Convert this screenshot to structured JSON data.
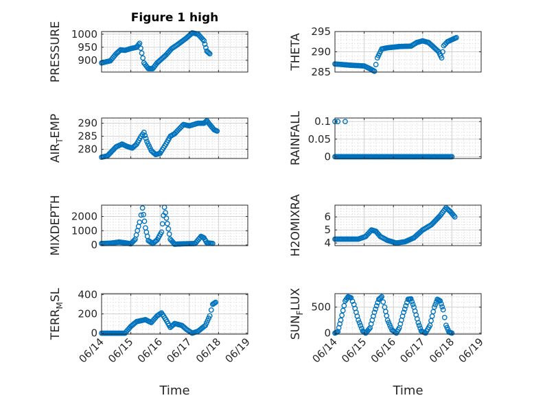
{
  "chart_data": [
    {
      "type": "scatter",
      "id": "p1",
      "title": "Figure 1 high",
      "ylabel": "PRESSURE",
      "ylabel_sub": "",
      "ylabel_after": "",
      "xlabel": "",
      "xlim": [
        0,
        5
      ],
      "xticks": [
        0,
        1,
        2,
        3,
        4,
        5
      ],
      "xtick_labels": [
        "06/14",
        "06/15",
        "06/16",
        "06/17",
        "06/18",
        "06/19"
      ],
      "show_xticklabels": false,
      "ylim": [
        855,
        1010
      ],
      "yticks": [
        900,
        950,
        1000
      ],
      "ytick_labels": [
        "900",
        "950",
        "1000"
      ],
      "grid": true,
      "marker": "circle",
      "color": "#0072BD",
      "anchors": [
        [
          0,
          890
        ],
        [
          0.3,
          898
        ],
        [
          0.5,
          925
        ],
        [
          0.65,
          940
        ],
        [
          0.8,
          938
        ],
        [
          1.0,
          945
        ],
        [
          1.2,
          950
        ],
        [
          1.3,
          965
        ],
        [
          1.45,
          890
        ],
        [
          1.6,
          868
        ],
        [
          1.75,
          868
        ],
        [
          1.9,
          890
        ],
        [
          2.2,
          920
        ],
        [
          2.4,
          945
        ],
        [
          2.6,
          960
        ],
        [
          2.9,
          985
        ],
        [
          3.1,
          1005
        ],
        [
          3.3,
          1000
        ],
        [
          3.5,
          975
        ],
        [
          3.6,
          935
        ],
        [
          3.7,
          925
        ]
      ]
    },
    {
      "type": "scatter",
      "id": "p2",
      "title": "",
      "ylabel": "THETA",
      "ylabel_sub": "",
      "ylabel_after": "",
      "xlabel": "",
      "xlim": [
        0,
        5
      ],
      "xticks": [
        0,
        1,
        2,
        3,
        4,
        5
      ],
      "xtick_labels": [
        "06/14",
        "06/15",
        "06/16",
        "06/17",
        "06/18",
        "06/19"
      ],
      "show_xticklabels": false,
      "ylim": [
        285,
        295
      ],
      "yticks": [
        285,
        290,
        295
      ],
      "ytick_labels": [
        "285",
        "290",
        "295"
      ],
      "grid": true,
      "marker": "circle",
      "color": "#0072BD",
      "anchors": [
        [
          0,
          287
        ],
        [
          0.5,
          286.7
        ],
        [
          1.0,
          286.5
        ],
        [
          1.2,
          285.8
        ],
        [
          1.35,
          285.2
        ],
        [
          1.45,
          288.5
        ],
        [
          1.6,
          290.7
        ],
        [
          1.8,
          291.0
        ],
        [
          2.2,
          291.3
        ],
        [
          2.6,
          291.4
        ],
        [
          2.8,
          292.3
        ],
        [
          3.0,
          292.7
        ],
        [
          3.2,
          292.3
        ],
        [
          3.4,
          291
        ],
        [
          3.55,
          290
        ],
        [
          3.65,
          288.5
        ],
        [
          3.72,
          291.5
        ],
        [
          3.85,
          292.5
        ],
        [
          4.0,
          293.0
        ],
        [
          4.15,
          293.5
        ]
      ]
    },
    {
      "type": "scatter",
      "id": "p3",
      "title": "",
      "ylabel": "AIR",
      "ylabel_sub": "T",
      "ylabel_after": "EMP",
      "xlabel": "",
      "xlim": [
        0,
        5
      ],
      "xticks": [
        0,
        1,
        2,
        3,
        4,
        5
      ],
      "xtick_labels": [
        "06/14",
        "06/15",
        "06/16",
        "06/17",
        "06/18",
        "06/19"
      ],
      "show_xticklabels": false,
      "ylim": [
        276.5,
        292
      ],
      "yticks": [
        280,
        285,
        290
      ],
      "ytick_labels": [
        "280",
        "285",
        "290"
      ],
      "grid": true,
      "marker": "circle",
      "color": "#0072BD",
      "anchors": [
        [
          0,
          277
        ],
        [
          0.2,
          277.5
        ],
        [
          0.5,
          281
        ],
        [
          0.7,
          282
        ],
        [
          0.9,
          281
        ],
        [
          1.05,
          280.5
        ],
        [
          1.2,
          282
        ],
        [
          1.35,
          285
        ],
        [
          1.45,
          286.5
        ],
        [
          1.55,
          283
        ],
        [
          1.7,
          279.5
        ],
        [
          1.85,
          278
        ],
        [
          2.0,
          278.5
        ],
        [
          2.2,
          282
        ],
        [
          2.35,
          285
        ],
        [
          2.5,
          286
        ],
        [
          2.8,
          289.5
        ],
        [
          3.0,
          289
        ],
        [
          3.3,
          290
        ],
        [
          3.5,
          290
        ],
        [
          3.6,
          291
        ],
        [
          3.7,
          289.5
        ],
        [
          3.85,
          287.5
        ],
        [
          3.95,
          287
        ]
      ]
    },
    {
      "type": "scatter",
      "id": "p4",
      "title": "",
      "ylabel": "RAINFALL",
      "ylabel_sub": "",
      "ylabel_after": "",
      "xlabel": "",
      "xlim": [
        0,
        5
      ],
      "xticks": [
        0,
        1,
        2,
        3,
        4,
        5
      ],
      "xtick_labels": [
        "06/14",
        "06/15",
        "06/16",
        "06/17",
        "06/18",
        "06/19"
      ],
      "show_xticklabels": false,
      "ylim": [
        -0.005,
        0.11
      ],
      "yticks": [
        0,
        0.05,
        0.1
      ],
      "ytick_labels": [
        "0",
        "0.05",
        "0.1"
      ],
      "grid": true,
      "marker": "circle",
      "color": "#0072BD",
      "anchors": [
        [
          0,
          0
        ],
        [
          4.0,
          0
        ]
      ],
      "extra_points": [
        [
          0.0,
          0.1
        ],
        [
          0.1,
          0.1
        ],
        [
          0.35,
          0.1
        ]
      ]
    },
    {
      "type": "scatter",
      "id": "p5",
      "title": "",
      "ylabel": "MIXDEPTH",
      "ylabel_sub": "",
      "ylabel_after": "",
      "xlabel": "",
      "xlim": [
        0,
        5
      ],
      "xticks": [
        0,
        1,
        2,
        3,
        4,
        5
      ],
      "xtick_labels": [
        "06/14",
        "06/15",
        "06/16",
        "06/17",
        "06/18",
        "06/19"
      ],
      "show_xticklabels": false,
      "ylim": [
        -50,
        2800
      ],
      "yticks": [
        0,
        1000,
        2000
      ],
      "ytick_labels": [
        "0",
        "1000",
        "2000"
      ],
      "grid": true,
      "marker": "circle",
      "color": "#0072BD",
      "anchors": [
        [
          0,
          100
        ],
        [
          0.3,
          120
        ],
        [
          0.6,
          200
        ],
        [
          0.8,
          150
        ],
        [
          1.0,
          80
        ],
        [
          1.15,
          400
        ],
        [
          1.3,
          1600
        ],
        [
          1.4,
          2600
        ],
        [
          1.5,
          1200
        ],
        [
          1.6,
          300
        ],
        [
          1.75,
          100
        ],
        [
          1.9,
          350
        ],
        [
          2.05,
          900
        ],
        [
          2.15,
          2650
        ],
        [
          2.25,
          1500
        ],
        [
          2.35,
          400
        ],
        [
          2.5,
          50
        ],
        [
          2.8,
          80
        ],
        [
          3.2,
          100
        ],
        [
          3.4,
          600
        ],
        [
          3.5,
          500
        ],
        [
          3.6,
          150
        ],
        [
          3.8,
          100
        ]
      ]
    },
    {
      "type": "scatter",
      "id": "p6",
      "title": "",
      "ylabel": "H2OMIXRA",
      "ylabel_sub": "",
      "ylabel_after": "",
      "xlabel": "",
      "xlim": [
        0,
        5
      ],
      "xticks": [
        0,
        1,
        2,
        3,
        4,
        5
      ],
      "xtick_labels": [
        "06/14",
        "06/15",
        "06/16",
        "06/17",
        "06/18",
        "06/19"
      ],
      "show_xticklabels": false,
      "ylim": [
        3.8,
        6.9
      ],
      "yticks": [
        4,
        5,
        6
      ],
      "ytick_labels": [
        "4",
        "5",
        "6"
      ],
      "grid": true,
      "marker": "circle",
      "color": "#0072BD",
      "anchors": [
        [
          0,
          4.3
        ],
        [
          0.3,
          4.3
        ],
        [
          0.8,
          4.3
        ],
        [
          1.05,
          4.5
        ],
        [
          1.25,
          5.0
        ],
        [
          1.4,
          4.9
        ],
        [
          1.55,
          4.5
        ],
        [
          1.8,
          4.2
        ],
        [
          2.1,
          4.0
        ],
        [
          2.4,
          4.1
        ],
        [
          2.7,
          4.4
        ],
        [
          3.0,
          5.0
        ],
        [
          3.3,
          5.4
        ],
        [
          3.6,
          6.1
        ],
        [
          3.8,
          6.7
        ],
        [
          3.95,
          6.4
        ],
        [
          4.1,
          6.0
        ]
      ]
    },
    {
      "type": "scatter",
      "id": "p7",
      "title": "",
      "ylabel": "TERR",
      "ylabel_sub": "M",
      "ylabel_after": "SL",
      "xlabel": "Time",
      "xlim": [
        0,
        5
      ],
      "xticks": [
        0,
        1,
        2,
        3,
        4,
        5
      ],
      "xtick_labels": [
        "06/14",
        "06/15",
        "06/16",
        "06/17",
        "06/18",
        "06/19"
      ],
      "show_xticklabels": true,
      "ylim": [
        -10,
        410
      ],
      "yticks": [
        0,
        200,
        400
      ],
      "ytick_labels": [
        "0",
        "200",
        "400"
      ],
      "grid": true,
      "marker": "circle",
      "color": "#0072BD",
      "anchors": [
        [
          0,
          0
        ],
        [
          0.8,
          0
        ],
        [
          1.0,
          70
        ],
        [
          1.2,
          120
        ],
        [
          1.5,
          140
        ],
        [
          1.7,
          110
        ],
        [
          1.9,
          180
        ],
        [
          2.05,
          210
        ],
        [
          2.2,
          140
        ],
        [
          2.35,
          60
        ],
        [
          2.5,
          100
        ],
        [
          2.75,
          80
        ],
        [
          2.9,
          40
        ],
        [
          3.1,
          0
        ],
        [
          3.3,
          20
        ],
        [
          3.55,
          80
        ],
        [
          3.7,
          180
        ],
        [
          3.8,
          300
        ],
        [
          3.9,
          320
        ]
      ]
    },
    {
      "type": "scatter",
      "id": "p8",
      "title": "",
      "ylabel": "SUN",
      "ylabel_sub": "F",
      "ylabel_after": "LUX",
      "xlabel": "Time",
      "xlim": [
        0,
        5
      ],
      "xticks": [
        0,
        1,
        2,
        3,
        4,
        5
      ],
      "xtick_labels": [
        "06/14",
        "06/15",
        "06/16",
        "06/17",
        "06/18",
        "06/19"
      ],
      "show_xticklabels": true,
      "ylim": [
        -20,
        760
      ],
      "yticks": [
        0,
        500
      ],
      "ytick_labels": [
        "0",
        "500"
      ],
      "grid": true,
      "marker": "circle",
      "color": "#0072BD",
      "anchors": [
        [
          0,
          0
        ],
        [
          0.1,
          30
        ],
        [
          0.2,
          250
        ],
        [
          0.35,
          620
        ],
        [
          0.45,
          700
        ],
        [
          0.55,
          680
        ],
        [
          0.65,
          550
        ],
        [
          0.8,
          250
        ],
        [
          0.95,
          40
        ],
        [
          1.05,
          0
        ],
        [
          1.2,
          100
        ],
        [
          1.35,
          400
        ],
        [
          1.5,
          650
        ],
        [
          1.6,
          700
        ],
        [
          1.7,
          500
        ],
        [
          1.8,
          250
        ],
        [
          1.95,
          60
        ],
        [
          2.1,
          0
        ],
        [
          2.2,
          100
        ],
        [
          2.35,
          400
        ],
        [
          2.5,
          650
        ],
        [
          2.6,
          660
        ],
        [
          2.7,
          500
        ],
        [
          2.85,
          200
        ],
        [
          2.95,
          40
        ],
        [
          3.1,
          0
        ],
        [
          3.25,
          150
        ],
        [
          3.4,
          500
        ],
        [
          3.5,
          650
        ],
        [
          3.6,
          620
        ],
        [
          3.7,
          450
        ],
        [
          3.8,
          150
        ],
        [
          3.9,
          20
        ],
        [
          4.0,
          0
        ]
      ]
    }
  ]
}
